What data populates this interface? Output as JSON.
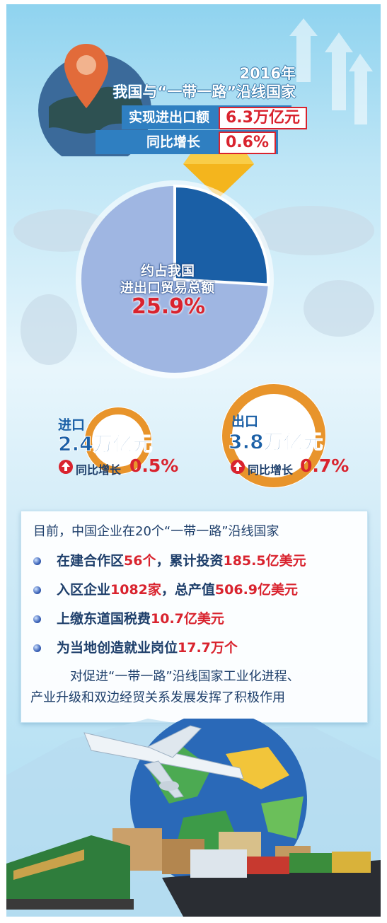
{
  "header": {
    "year": "2016年",
    "title": "我国与“一带一路”沿线国家",
    "trade_label": "实现进出口额",
    "trade_value": "6.3万亿元",
    "growth_label": "同比增长",
    "growth_value": "0.6%"
  },
  "share": {
    "line1": "约占我国",
    "line2": "进出口贸易总额",
    "value": "25.9%",
    "fraction": 0.259
  },
  "imports": {
    "label": "进口",
    "value": "2.4万亿元",
    "growth_label": "同比增长",
    "growth_value": "0.5%"
  },
  "exports": {
    "label": "出口",
    "value": "3.8万亿元",
    "growth_label": "同比增长",
    "growth_value": "0.7%"
  },
  "info": {
    "intro": "目前，中国企业在20个“一带一路”沿线国家",
    "items": [
      {
        "text": "在建合作区",
        "highlight": "56个",
        "text2": "，累计投资",
        "highlight2": "185.5亿美元"
      },
      {
        "text": "入区企业",
        "highlight": "1082家",
        "text2": "，总产值",
        "highlight2": "506.9亿美元"
      },
      {
        "text": "上缴东道国税费",
        "highlight": "10.7亿美元",
        "text2": "",
        "highlight2": ""
      },
      {
        "text": "为当地创造就业岗位",
        "highlight": "17.7万个",
        "text2": "",
        "highlight2": ""
      }
    ],
    "conclusion_line1": "对促进“一带一路”沿线国家工业化进程、",
    "conclusion_line2": "产业升级和双边经贸关系发展发挥了积极作用"
  },
  "colors": {
    "red": "#d9232e",
    "blue_dark": "#1a5fa6",
    "blue_light": "#9fb6e2",
    "orange": "#e8942b",
    "header_bar": "#2f7fc1"
  }
}
